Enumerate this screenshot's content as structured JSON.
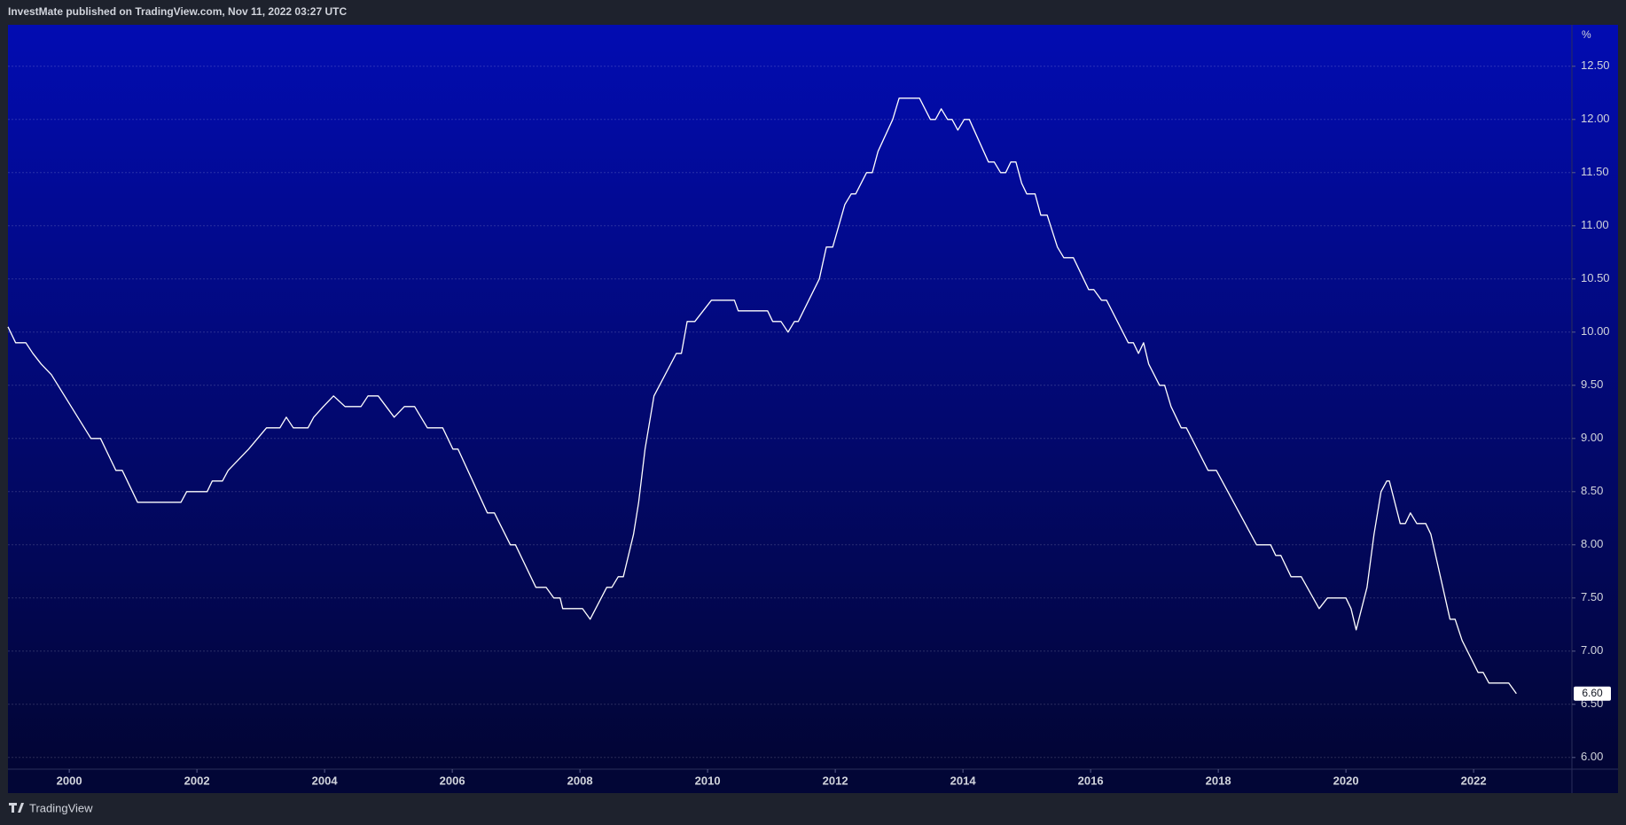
{
  "chart_data": {
    "type": "line",
    "header": "InvestMate published on TradingView.com, Nov 11, 2022 03:27 UTC",
    "footer": "TradingView",
    "y_unit": "%",
    "price_label": "6.60",
    "background_gradient": [
      "#020cb2",
      "#020534"
    ],
    "grid": true,
    "xlim": [
      1999.04,
      2023.54
    ],
    "ylim": [
      5.89,
      12.89
    ],
    "xticks": [
      2000,
      2002,
      2004,
      2006,
      2008,
      2010,
      2012,
      2014,
      2016,
      2018,
      2020,
      2022
    ],
    "yticks": [
      {
        "value": 6,
        "label": "6.00"
      },
      {
        "value": 6.5,
        "label": "6.50"
      },
      {
        "value": 7,
        "label": "7.00"
      },
      {
        "value": 7.5,
        "label": "7.50"
      },
      {
        "value": 8,
        "label": "8.00"
      },
      {
        "value": 8.5,
        "label": "8.50"
      },
      {
        "value": 9,
        "label": "9.00"
      },
      {
        "value": 9.5,
        "label": "9.50"
      },
      {
        "value": 10,
        "label": "10.00"
      },
      {
        "value": 10.5,
        "label": "10.50"
      },
      {
        "value": 11,
        "label": "11.00"
      },
      {
        "value": 11.5,
        "label": "11.50"
      },
      {
        "value": 12,
        "label": "12.00"
      },
      {
        "value": 12.5,
        "label": "12.50"
      }
    ],
    "x": [
      1999.04,
      1999.16,
      1999.32,
      1999.43,
      1999.56,
      1999.72,
      2000.34,
      2000.49,
      2000.73,
      2000.83,
      2001.07,
      2001.75,
      2001.84,
      2002.16,
      2002.24,
      2002.4,
      2002.49,
      2002.65,
      2002.81,
      2003.09,
      2003.3,
      2003.4,
      2003.51,
      2003.74,
      2003.83,
      2003.98,
      2004.14,
      2004.32,
      2004.57,
      2004.68,
      2004.84,
      2005.09,
      2005.25,
      2005.41,
      2005.61,
      2005.85,
      2006.01,
      2006.09,
      2006.55,
      2006.66,
      2006.91,
      2006.99,
      2007.31,
      2007.47,
      2007.59,
      2007.69,
      2007.73,
      2008.04,
      2008.16,
      2008.42,
      2008.5,
      2008.6,
      2008.68,
      2008.84,
      2008.92,
      2009.02,
      2009.16,
      2009.51,
      2009.59,
      2009.68,
      2009.8,
      2009.93,
      2010.06,
      2010.42,
      2010.48,
      2010.94,
      2011.02,
      2011.15,
      2011.26,
      2011.36,
      2011.42,
      2011.75,
      2011.86,
      2011.96,
      2012.15,
      2012.25,
      2012.32,
      2012.49,
      2012.58,
      2012.67,
      2012.9,
      2013.0,
      2013.32,
      2013.49,
      2013.57,
      2013.66,
      2013.76,
      2013.83,
      2013.92,
      2014.02,
      2014.1,
      2014.4,
      2014.49,
      2014.59,
      2014.67,
      2014.75,
      2014.83,
      2014.92,
      2015.0,
      2015.13,
      2015.22,
      2015.32,
      2015.48,
      2015.58,
      2015.73,
      2015.97,
      2016.05,
      2016.17,
      2016.25,
      2016.59,
      2016.67,
      2016.75,
      2016.83,
      2016.91,
      2017.08,
      2017.16,
      2017.26,
      2017.42,
      2017.5,
      2017.84,
      2017.97,
      2018.6,
      2018.82,
      2018.9,
      2018.98,
      2019.14,
      2019.3,
      2019.58,
      2019.71,
      2020.0,
      2020.08,
      2020.16,
      2020.33,
      2020.44,
      2020.55,
      2020.64,
      2020.68,
      2020.85,
      2020.93,
      2021.01,
      2021.11,
      2021.25,
      2021.33,
      2021.63,
      2021.71,
      2021.82,
      2022.07,
      2022.15,
      2022.24,
      2022.55,
      2022.67
    ],
    "series": [
      {
        "color": "#ffffff",
        "values": [
          10.05,
          9.9,
          9.9,
          9.8,
          9.7,
          9.6,
          9.0,
          9.0,
          8.7,
          8.7,
          8.4,
          8.4,
          8.5,
          8.5,
          8.6,
          8.6,
          8.7,
          8.8,
          8.9,
          9.1,
          9.1,
          9.2,
          9.1,
          9.1,
          9.2,
          9.3,
          9.4,
          9.3,
          9.3,
          9.4,
          9.4,
          9.2,
          9.3,
          9.3,
          9.1,
          9.1,
          8.9,
          8.9,
          8.3,
          8.3,
          8.0,
          8.0,
          7.6,
          7.6,
          7.5,
          7.5,
          7.4,
          7.4,
          7.3,
          7.6,
          7.6,
          7.7,
          7.7,
          8.1,
          8.4,
          8.9,
          9.4,
          9.8,
          9.8,
          10.1,
          10.1,
          10.2,
          10.3,
          10.3,
          10.2,
          10.2,
          10.1,
          10.1,
          10.0,
          10.1,
          10.1,
          10.5,
          10.8,
          10.8,
          11.2,
          11.3,
          11.3,
          11.5,
          11.5,
          11.7,
          12.0,
          12.2,
          12.2,
          12.0,
          12.0,
          12.1,
          12.0,
          12.0,
          11.9,
          12.0,
          12.0,
          11.6,
          11.6,
          11.5,
          11.5,
          11.6,
          11.6,
          11.4,
          11.3,
          11.3,
          11.1,
          11.1,
          10.8,
          10.7,
          10.7,
          10.4,
          10.4,
          10.3,
          10.3,
          9.9,
          9.9,
          9.8,
          9.9,
          9.7,
          9.5,
          9.5,
          9.3,
          9.1,
          9.1,
          8.7,
          8.7,
          8.0,
          8.0,
          7.9,
          7.9,
          7.7,
          7.7,
          7.4,
          7.5,
          7.5,
          7.4,
          7.2,
          7.6,
          8.1,
          8.5,
          8.6,
          8.6,
          8.2,
          8.2,
          8.3,
          8.2,
          8.2,
          8.1,
          7.3,
          7.3,
          7.1,
          6.8,
          6.8,
          6.7,
          6.7,
          6.6
        ]
      }
    ]
  }
}
